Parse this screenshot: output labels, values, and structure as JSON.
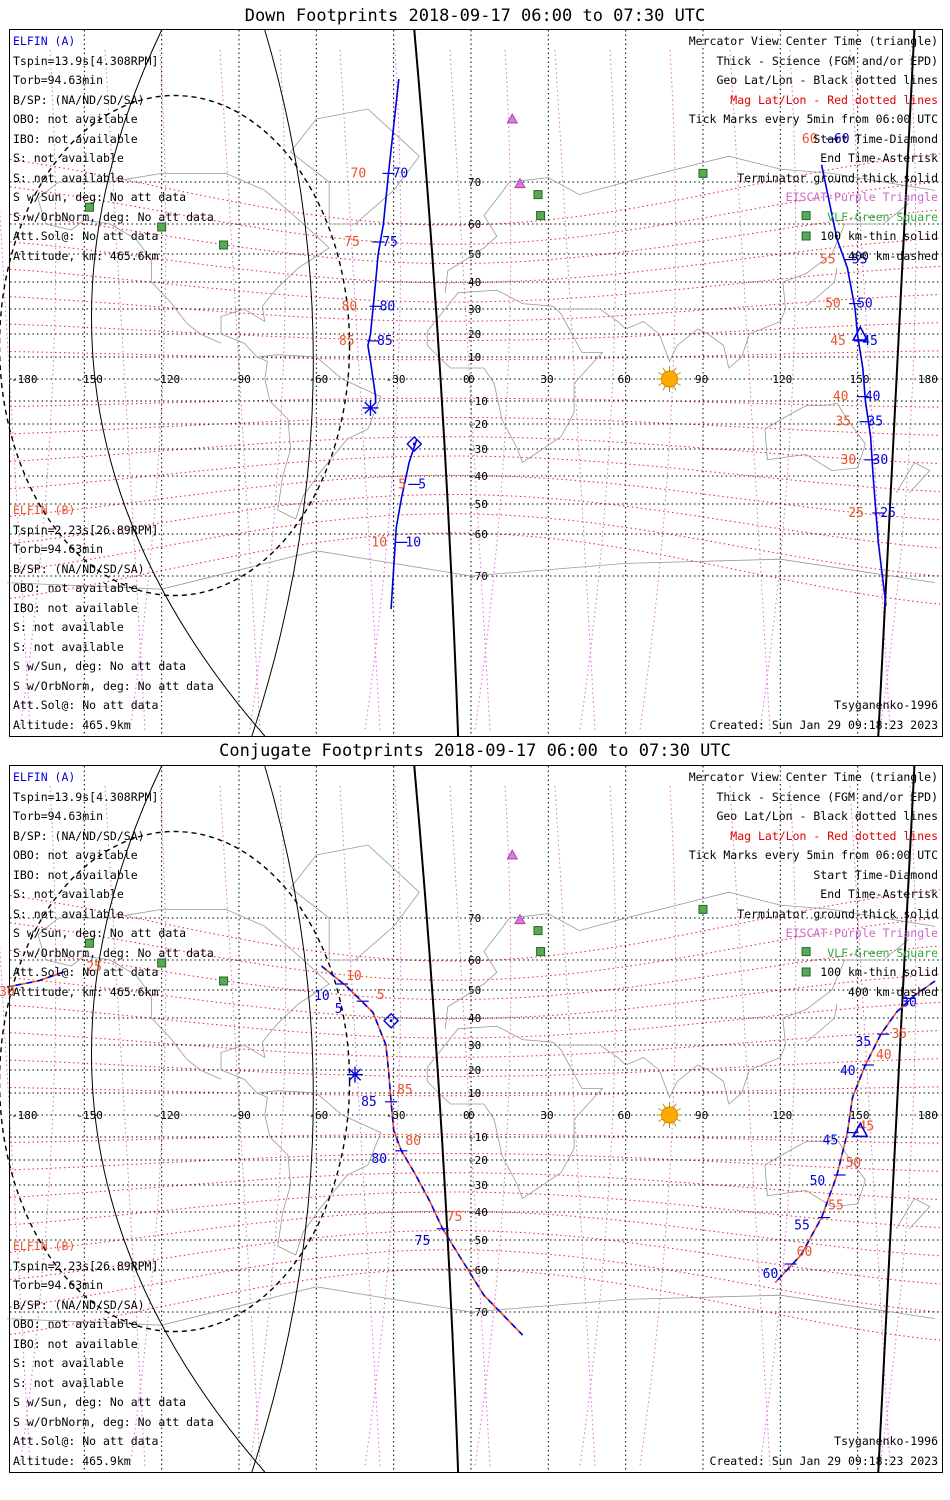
{
  "panels": [
    {
      "title": "Down Footprints 2018-09-17 06:00 to 07:30 UTC",
      "elfin_a": {
        "name": "ELFIN (A)",
        "lines": [
          "Tspin=13.9s[4.308RPM]",
          "Torb=94.63min",
          "B/SP: (NA/ND/SD/SA)",
          "OBO: not available",
          "IBO: not available",
          "S: not available",
          "S: not available",
          "S w/Sun, deg: No att data",
          "S w/OrbNorm, deg: No att data",
          "Att.Sol@: No att data",
          "Altitude, km: 465.6km"
        ]
      },
      "elfin_b": {
        "name": "ELFIN (B)",
        "lines": [
          "Tspin=2.23s[26.89RPM]",
          "Torb=94.63min",
          "B/SP: (NA/ND/SD/SA)",
          "OBO: not available",
          "IBO: not available",
          "S: not available",
          "S: not available",
          "S w/Sun, deg: No att data",
          "S w/OrbNorm, deg: No att data",
          "Att.Sol@: No att data",
          "Altitude: 465.9km"
        ]
      },
      "legend": [
        {
          "text": "Mercator View Center Time (triangle)",
          "color": "#000000"
        },
        {
          "text": "Thick - Science (FGM and/or EPD)",
          "color": "#000000"
        },
        {
          "text": "Geo Lat/Lon - Black dotted lines",
          "color": "#000000"
        },
        {
          "text": "Mag Lat/Lon - Red dotted lines",
          "color": "#e00000"
        },
        {
          "text": "Tick Marks every 5min from 06:00 UTC",
          "color": "#000000"
        },
        {
          "text": "Start Time-Diamond",
          "color": "#000000"
        },
        {
          "text": "End Time-Asterisk",
          "color": "#000000"
        },
        {
          "text": "Terminator ground-thick solid",
          "color": "#000000"
        },
        {
          "text": "EISCAT-Purple Triangle",
          "color": "#cc66cc"
        },
        {
          "text": "VLF-Green Square",
          "color": "#33aa44"
        },
        {
          "text": "100 km-thin solid",
          "color": "#000000"
        },
        {
          "text": "400 km-dashed",
          "color": "#000000"
        }
      ],
      "model": "Tsyganenko-1996",
      "created": "Created: Sun Jan 29 09:18:23 2023",
      "lat_labels": [
        "70",
        "60",
        "50",
        "40",
        "30",
        "20",
        "10",
        "0",
        "-10",
        "-20",
        "-30",
        "-40",
        "-50",
        "-60",
        "-70"
      ],
      "lon_labels": [
        "-180",
        "-150",
        "-120",
        "-90",
        "-60",
        "-30",
        "0",
        "30",
        "60",
        "90",
        "120",
        "150",
        "180"
      ],
      "track_a": [
        [
          -28,
          86
        ],
        [
          -32,
          72
        ],
        [
          -34,
          60
        ],
        [
          -36,
          50
        ],
        [
          -37,
          40
        ],
        [
          -38,
          30
        ],
        [
          -39,
          20
        ],
        [
          -40,
          15
        ],
        [
          -39,
          8
        ],
        [
          -37,
          -8
        ],
        [
          -37,
          -11
        ]
      ],
      "track_b": [
        [
          -21,
          -26
        ],
        [
          -24,
          -35
        ],
        [
          -27,
          -48
        ],
        [
          -29,
          -58
        ],
        [
          -30,
          -68
        ],
        [
          -31,
          -80
        ]
      ],
      "track_c": [
        [
          136,
          74
        ],
        [
          142,
          55
        ],
        [
          146,
          45
        ],
        [
          149,
          30
        ],
        [
          150,
          19
        ],
        [
          152,
          5
        ],
        [
          153,
          -10
        ],
        [
          155,
          -25
        ],
        [
          156,
          -40
        ],
        [
          158,
          -62
        ],
        [
          161,
          -79
        ]
      ],
      "ticks": [
        {
          "lon": -32,
          "lat": 72,
          "text": "70",
          "color": "#e8532e",
          "dx": -38,
          "dy": 4
        },
        {
          "lon": -32,
          "lat": 72,
          "text": "70",
          "color": "#0000dd",
          "dx": 4,
          "dy": 4
        },
        {
          "lon": -36,
          "lat": 54,
          "text": "75",
          "color": "#e8532e",
          "dx": -34,
          "dy": 4
        },
        {
          "lon": -36,
          "lat": 54,
          "text": "75",
          "color": "#0000dd",
          "dx": 4,
          "dy": 4
        },
        {
          "lon": -37,
          "lat": 31,
          "text": "80",
          "color": "#e8532e",
          "dx": -34,
          "dy": 4
        },
        {
          "lon": -37,
          "lat": 31,
          "text": "80",
          "color": "#0000dd",
          "dx": 4,
          "dy": 4
        },
        {
          "lon": -38,
          "lat": 17,
          "text": "85",
          "color": "#e8532e",
          "dx": -34,
          "dy": 4
        },
        {
          "lon": -38,
          "lat": 17,
          "text": "85",
          "color": "#0000dd",
          "dx": 4,
          "dy": 4
        },
        {
          "lon": -22,
          "lat": -43,
          "text": "5",
          "color": "#e8532e",
          "dx": -16,
          "dy": 4
        },
        {
          "lon": -22,
          "lat": -43,
          "text": "5",
          "color": "#0000dd",
          "dx": 4,
          "dy": 4
        },
        {
          "lon": -27,
          "lat": -62,
          "text": "10",
          "color": "#e8532e",
          "dx": -30,
          "dy": 4
        },
        {
          "lon": -27,
          "lat": -62,
          "text": "10",
          "color": "#0000dd",
          "dx": 4,
          "dy": 4
        },
        {
          "lon": 140,
          "lat": 80,
          "text": "60",
          "color": "#e8532e",
          "dx": -30,
          "dy": 4
        },
        {
          "lon": 140,
          "lat": 80,
          "text": "60",
          "color": "#0000dd",
          "dx": 2,
          "dy": 4
        },
        {
          "lon": 147,
          "lat": 48,
          "text": "55",
          "color": "#e8532e",
          "dx": -30,
          "dy": 4
        },
        {
          "lon": 147,
          "lat": 48,
          "text": "55",
          "color": "#0000dd",
          "dx": 2,
          "dy": 4
        },
        {
          "lon": 149,
          "lat": 32,
          "text": "50",
          "color": "#e8532e",
          "dx": -30,
          "dy": 4
        },
        {
          "lon": 149,
          "lat": 32,
          "text": "50",
          "color": "#0000dd",
          "dx": 2,
          "dy": 4
        },
        {
          "lon": 151,
          "lat": 17,
          "text": "45",
          "color": "#e8532e",
          "dx": -30,
          "dy": 4
        },
        {
          "lon": 151,
          "lat": 17,
          "text": "45",
          "color": "#0000dd",
          "dx": 2,
          "dy": 4
        },
        {
          "lon": 152,
          "lat": -8,
          "text": "40",
          "color": "#e8532e",
          "dx": -30,
          "dy": 4
        },
        {
          "lon": 152,
          "lat": -8,
          "text": "40",
          "color": "#0000dd",
          "dx": 2,
          "dy": 4
        },
        {
          "lon": 153,
          "lat": -19,
          "text": "35",
          "color": "#e8532e",
          "dx": -30,
          "dy": 4
        },
        {
          "lon": 153,
          "lat": -19,
          "text": "35",
          "color": "#0000dd",
          "dx": 2,
          "dy": 4
        },
        {
          "lon": 155,
          "lat": -34,
          "text": "30",
          "color": "#e8532e",
          "dx": -30,
          "dy": 4
        },
        {
          "lon": 155,
          "lat": -34,
          "text": "30",
          "color": "#0000dd",
          "dx": 2,
          "dy": 4
        },
        {
          "lon": 158,
          "lat": -53,
          "text": "25",
          "color": "#e8532e",
          "dx": -30,
          "dy": 4
        },
        {
          "lon": 158,
          "lat": -53,
          "text": "25",
          "color": "#0000dd",
          "dx": 2,
          "dy": 4
        }
      ],
      "start_marker": [
        -22,
        -28
      ],
      "end_marker": [
        -39,
        -13
      ],
      "center_marker": [
        151,
        20
      ],
      "dashed_tracks": []
    },
    {
      "title": "Conjugate Footprints 2018-09-17 06:00 to 07:30 UTC",
      "elfin_a": {
        "name": "ELFIN (A)",
        "lines": [
          "Tspin=13.9s[4.308RPM]",
          "Torb=94.63min",
          "B/SP: (NA/ND/SD/SA)",
          "OBO: not available",
          "IBO: not available",
          "S: not available",
          "S: not available",
          "S w/Sun, deg: No att data",
          "S w/OrbNorm, deg: No att data",
          "Att.Sol@: No att data",
          "Altitude, km: 465.6km"
        ]
      },
      "elfin_b": {
        "name": "ELFIN (B)",
        "lines": [
          "Tspin=2.23s[26.89RPM]",
          "Torb=94.63min",
          "B/SP: (NA/ND/SD/SA)",
          "OBO: not available",
          "IBO: not available",
          "S: not available",
          "S: not available",
          "S w/Sun, deg: No att data",
          "S w/OrbNorm, deg: No att data",
          "Att.Sol@: No att data",
          "Altitude: 465.9km"
        ]
      },
      "legend": [
        {
          "text": "Mercator View Center Time (triangle)",
          "color": "#000000"
        },
        {
          "text": "Thick - Science (FGM and/or EPD)",
          "color": "#000000"
        },
        {
          "text": "Geo Lat/Lon - Black dotted lines",
          "color": "#000000"
        },
        {
          "text": "Mag Lat/Lon - Red dotted lines",
          "color": "#e00000"
        },
        {
          "text": "Tick Marks every 5min from 06:00 UTC",
          "color": "#000000"
        },
        {
          "text": "Start Time-Diamond",
          "color": "#000000"
        },
        {
          "text": "End Time-Asterisk",
          "color": "#000000"
        },
        {
          "text": "Terminator ground-thick solid",
          "color": "#000000"
        },
        {
          "text": "EISCAT-Purple Triangle",
          "color": "#cc66cc"
        },
        {
          "text": "VLF-Green Square",
          "color": "#33aa44"
        },
        {
          "text": "100 km-thin solid",
          "color": "#000000"
        },
        {
          "text": "400 km-dashed",
          "color": "#000000"
        }
      ],
      "model": "Tsyganenko-1996",
      "created": "Created: Sun Jan 29 09:18:23 2023",
      "lat_labels": [
        "70",
        "60",
        "50",
        "40",
        "30",
        "20",
        "10",
        "0",
        "-10",
        "-20",
        "-30",
        "-40",
        "-50",
        "-60",
        "-70"
      ],
      "lon_labels": [
        "-180",
        "-150",
        "-120",
        "-90",
        "-60",
        "-30",
        "0",
        "30",
        "60",
        "90",
        "120",
        "150",
        "180"
      ],
      "track_a": [],
      "track_b": [],
      "track_c": [],
      "dashed_tracks": [
        [
          [
            -158,
            56
          ],
          [
            -168,
            53
          ],
          [
            -180,
            51
          ]
        ],
        [
          [
            -58,
            58
          ],
          [
            -48,
            51
          ],
          [
            -38,
            42
          ],
          [
            -33,
            30
          ],
          [
            -32,
            20
          ],
          [
            -31,
            6
          ],
          [
            -30,
            -7
          ],
          [
            -27,
            -16
          ],
          [
            -22,
            -25
          ],
          [
            -16,
            -36
          ],
          [
            -11,
            -46
          ],
          [
            -4,
            -56
          ],
          [
            5,
            -66
          ],
          [
            20,
            -77
          ]
        ],
        [
          [
            180,
            53
          ],
          [
            172,
            48
          ],
          [
            165,
            42
          ],
          [
            159,
            34
          ],
          [
            153,
            22
          ],
          [
            148,
            8
          ],
          [
            146,
            -8
          ],
          [
            142,
            -26
          ],
          [
            136,
            -42
          ],
          [
            128,
            -55
          ],
          [
            118,
            -63
          ]
        ]
      ],
      "ticks": [
        {
          "lon": -150,
          "lat": 55,
          "text": "25",
          "color": "#e8532e",
          "dx": 2,
          "dy": -4
        },
        {
          "lon": -180,
          "lat": 50,
          "text": "30",
          "color": "#e8532e",
          "dx": -8,
          "dy": 6
        },
        {
          "lon": -50,
          "lat": 52,
          "text": "10",
          "color": "#e8532e",
          "dx": 4,
          "dy": -4
        },
        {
          "lon": -50,
          "lat": 52,
          "text": "10",
          "color": "#0000dd",
          "dx": -28,
          "dy": 16
        },
        {
          "lon": -42,
          "lat": 46,
          "text": "5",
          "color": "#e8532e",
          "dx": 14,
          "dy": -2
        },
        {
          "lon": -42,
          "lat": 46,
          "text": "5",
          "color": "#0000dd",
          "dx": -28,
          "dy": 12
        },
        {
          "lon": -31,
          "lat": 6,
          "text": "85",
          "color": "#e8532e",
          "dx": 6,
          "dy": -8
        },
        {
          "lon": -31,
          "lat": 6,
          "text": "85",
          "color": "#0000dd",
          "dx": -30,
          "dy": 4
        },
        {
          "lon": -27,
          "lat": -16,
          "text": "80",
          "color": "#e8532e",
          "dx": 4,
          "dy": -6
        },
        {
          "lon": -27,
          "lat": -16,
          "text": "80",
          "color": "#0000dd",
          "dx": -30,
          "dy": 12
        },
        {
          "lon": -11,
          "lat": -46,
          "text": "75",
          "color": "#e8532e",
          "dx": 4,
          "dy": -8
        },
        {
          "lon": -11,
          "lat": -46,
          "text": "75",
          "color": "#0000dd",
          "dx": -28,
          "dy": 16
        },
        {
          "lon": 170,
          "lat": 47,
          "text": "30",
          "color": "#0000dd",
          "dx": -8,
          "dy": 8
        },
        {
          "lon": 160,
          "lat": 34,
          "text": "35",
          "color": "#e8532e",
          "dx": 8,
          "dy": 4
        },
        {
          "lon": 160,
          "lat": 34,
          "text": "35",
          "color": "#0000dd",
          "dx": -28,
          "dy": 12
        },
        {
          "lon": 154,
          "lat": 22,
          "text": "40",
          "color": "#e8532e",
          "dx": 8,
          "dy": -6
        },
        {
          "lon": 154,
          "lat": 22,
          "text": "40",
          "color": "#0000dd",
          "dx": -28,
          "dy": 10
        },
        {
          "lon": 148,
          "lat": -8,
          "text": "45",
          "color": "#e8532e",
          "dx": 6,
          "dy": -2
        },
        {
          "lon": 148,
          "lat": -8,
          "text": "45",
          "color": "#0000dd",
          "dx": -30,
          "dy": 12
        },
        {
          "lon": 143,
          "lat": -26,
          "text": "50",
          "color": "#e8532e",
          "dx": 6,
          "dy": -8
        },
        {
          "lon": 143,
          "lat": -26,
          "text": "50",
          "color": "#0000dd",
          "dx": -30,
          "dy": 10
        },
        {
          "lon": 137,
          "lat": -42,
          "text": "55",
          "color": "#e8532e",
          "dx": 4,
          "dy": -8
        },
        {
          "lon": 137,
          "lat": -42,
          "text": "55",
          "color": "#0000dd",
          "dx": -30,
          "dy": 12
        },
        {
          "lon": 124,
          "lat": -58,
          "text": "60",
          "color": "#e8532e",
          "dx": 6,
          "dy": -8
        },
        {
          "lon": 124,
          "lat": -58,
          "text": "60",
          "color": "#0000dd",
          "dx": -28,
          "dy": 14
        }
      ],
      "start_marker": [
        -31,
        39
      ],
      "end_marker": [
        -45,
        18
      ],
      "center_marker": [
        151,
        -7
      ]
    }
  ]
}
